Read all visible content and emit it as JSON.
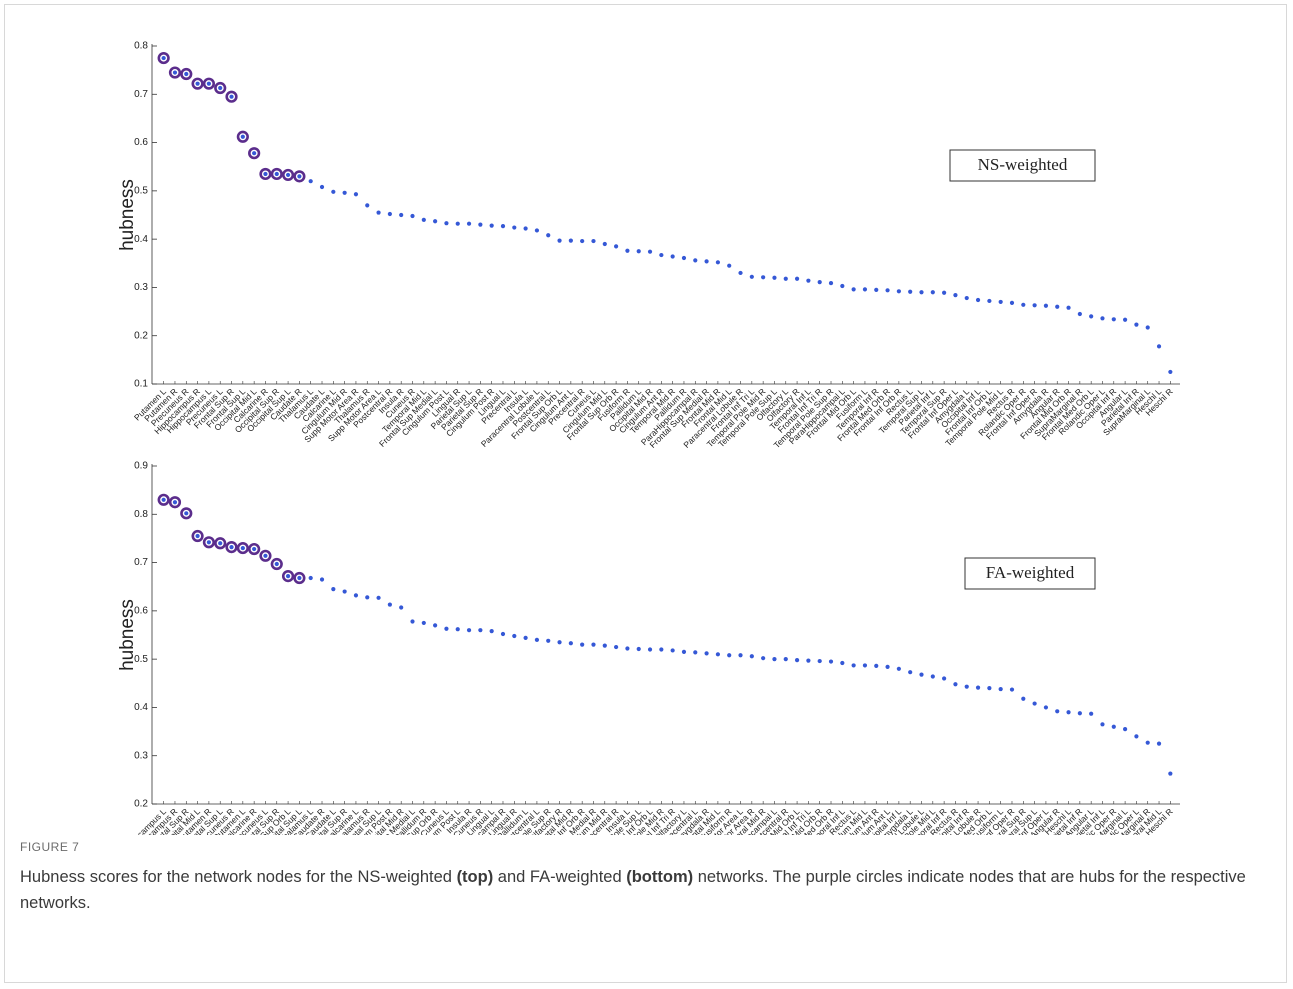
{
  "chart_data": [
    {
      "type": "scatter",
      "annotation": "NS-weighted",
      "y_label": "hubness",
      "color": "#3558d6",
      "highlight_color": "#5b2d8c",
      "highlight_count": 13,
      "ylim": [
        0.1,
        0.8
      ],
      "yticks": [
        0.1,
        0.2,
        0.3,
        0.4,
        0.5,
        0.6,
        0.7,
        0.8
      ],
      "categories": [
        "Putamen L",
        "Putamen R",
        "Precuneus R",
        "Hippocampus R",
        "Hippocampus L",
        "Precuneus L",
        "Frontal Sup R",
        "Frontal Sup L",
        "Occipital Mid L",
        "Calcarine R",
        "Occipital Sup R",
        "Occipital Sup L",
        "Caudate R",
        "Thalamus L",
        "Caudate L",
        "Calcarine L",
        "Cingulum Mid R",
        "Supp Motor Area R",
        "Thalamus R",
        "Supp Motor Area L",
        "Postcentral R",
        "Insula R",
        "Cuneus R",
        "Temporal Mid L",
        "Frontal Sup Medial L",
        "Cingulum Post L",
        "Lingual R",
        "Parietal Sup L",
        "Parietal Sup R",
        "Cingulum Post R",
        "Lingual L",
        "Precentral L",
        "Insula L",
        "Paracentral Lobule L",
        "Postcentral L",
        "Frontal Sup Orb L",
        "Cingulum Ant L",
        "Precentral R",
        "Cuneus L",
        "Cingulum Mid L",
        "Frontal Sup Orb R",
        "Fusiform R",
        "Pallidum L",
        "Occipital Mid R",
        "Cingulum Ant R",
        "Temporal Mid R",
        "Pallidum R",
        "ParaHippocampal R",
        "Frontal Sup Medial R",
        "Frontal Mid R",
        "Frontal Mid L",
        "Paracentral Lobule R",
        "Frontal Inf Tri L",
        "Temporal Pole Mid R",
        "Temporal Pole Sup L",
        "Olfactory L",
        "Olfactory R",
        "Temporal Inf L",
        "Frontal Inf Tri R",
        "Temporal Pole Sup R",
        "ParaHippocampal L",
        "Frontal Mid Orb L",
        "Fusiform L",
        "Temporal Inf R",
        "Frontal Med Orb R",
        "Frontal Inf Orb R",
        "Rectus L",
        "Temporal Sup L",
        "Parietal Inf L",
        "Temporal Sup R",
        "Frontal Inf Oper L",
        "Amygdala L",
        "Occipital Inf L",
        "Frontal Inf Orb L",
        "Temporal Pole Mid L",
        "Rectus R",
        "Rolandic Oper R",
        "Frontal Inf Oper R",
        "Amygdala R",
        "Angular R",
        "Frontal Mid Orb R",
        "SupraMarginal R",
        "Frontal Med Orb L",
        "Rolandic Oper L",
        "Occipital Inf R",
        "Angular L",
        "Parietal Inf R",
        "SupraMarginal L",
        "Heschl L",
        "Heschl R"
      ],
      "values": [
        0.775,
        0.745,
        0.742,
        0.722,
        0.722,
        0.713,
        0.695,
        0.612,
        0.578,
        0.535,
        0.535,
        0.533,
        0.53,
        0.52,
        0.508,
        0.498,
        0.496,
        0.493,
        0.47,
        0.455,
        0.452,
        0.45,
        0.448,
        0.44,
        0.437,
        0.433,
        0.432,
        0.432,
        0.43,
        0.428,
        0.427,
        0.424,
        0.422,
        0.418,
        0.408,
        0.397,
        0.397,
        0.396,
        0.396,
        0.39,
        0.385,
        0.376,
        0.375,
        0.374,
        0.367,
        0.364,
        0.361,
        0.356,
        0.354,
        0.352,
        0.345,
        0.33,
        0.322,
        0.321,
        0.32,
        0.318,
        0.318,
        0.314,
        0.311,
        0.309,
        0.303,
        0.296,
        0.296,
        0.295,
        0.294,
        0.292,
        0.291,
        0.29,
        0.29,
        0.289,
        0.284,
        0.278,
        0.274,
        0.272,
        0.27,
        0.268,
        0.264,
        0.263,
        0.262,
        0.26,
        0.258,
        0.245,
        0.24,
        0.236,
        0.234,
        0.233,
        0.223,
        0.217,
        0.178,
        0.125
      ]
    },
    {
      "type": "scatter",
      "annotation": "FA-weighted",
      "y_label": "hubness",
      "color": "#3558d6",
      "highlight_color": "#5b2d8c",
      "highlight_count": 13,
      "ylim": [
        0.2,
        0.9
      ],
      "yticks": [
        0.2,
        0.3,
        0.4,
        0.5,
        0.6,
        0.7,
        0.8,
        0.9
      ],
      "categories": [
        "Hippocampus L",
        "Hippocampus R",
        "Frontal Sup R",
        "Occipital Mid L",
        "Putamen R",
        "Frontal Sup L",
        "Precuneus R",
        "Putamen L",
        "Calcarine R",
        "Precuneus L",
        "Parietal Sup R",
        "Frontal Sup Orb L",
        "Occipital Sup L",
        "Thalamus L",
        "Caudate R",
        "Caudate L",
        "Occipital Sup R",
        "Calcarine L",
        "Thalamus R",
        "Parietal Sup L",
        "Cingulum Post R",
        "Occipital Mid R",
        "Frontal Sup Medial L",
        "Pallidum R",
        "Frontal Sup Orb R",
        "Cuneus L",
        "Cingulum Post L",
        "Insula R",
        "Cuneus R",
        "Lingual L",
        "ParaHippocampal R",
        "Lingual R",
        "Pallidum L",
        "Postcentral L",
        "Temporal Pole Sup R",
        "Olfactory R",
        "Frontal Mid R",
        "Frontal Inf Orb R",
        "Frontal Sup Medial R",
        "Cingulum Mid R",
        "Precentral R",
        "Insula L",
        "Temporal Pole Sup L",
        "Frontal Inf Orb L",
        "Temporal Pole Mid R",
        "Frontal Inf Tri R",
        "Olfactory L",
        "Precentral L",
        "Amygdala R",
        "Frontal Mid L",
        "Fusiform R",
        "Supp Motor Area L",
        "Supp Motor Area R",
        "Temporal Mid R",
        "ParaHippocampal L",
        "Postcentral R",
        "Frontal Mid Orb L",
        "Frontal Inf Tri L",
        "Frontal Mid Orb R",
        "Frontal Med Orb R",
        "Temporal Inf L",
        "Rectus L",
        "Cingulum Mid L",
        "Cingulum Ant R",
        "Cingulum Ant L",
        "Occipital Inf L",
        "Amygdala L",
        "Paracentral Lobule L",
        "Temporal Pole Mid L",
        "Temporal Inf R",
        "Rectus R",
        "Occipital Inf R",
        "Paracentral Lobule R",
        "Frontal Med Orb L",
        "Fusiform L",
        "Frontal Inf Oper R",
        "Temporal Sup R",
        "Temporal Sup L",
        "Frontal Inf Oper L",
        "Angular R",
        "Heschl L",
        "Parietal Inf R",
        "Angular L",
        "Parietal Inf L",
        "Rolandic Oper R",
        "SupraMarginal L",
        "Rolandic Oper L",
        "SupraMarginal R",
        "Temporal Mid L",
        "Heschl R"
      ],
      "values": [
        0.83,
        0.825,
        0.802,
        0.755,
        0.742,
        0.74,
        0.732,
        0.73,
        0.728,
        0.714,
        0.697,
        0.672,
        0.668,
        0.668,
        0.665,
        0.645,
        0.64,
        0.632,
        0.628,
        0.627,
        0.613,
        0.607,
        0.578,
        0.575,
        0.57,
        0.563,
        0.562,
        0.56,
        0.56,
        0.558,
        0.552,
        0.548,
        0.544,
        0.54,
        0.538,
        0.535,
        0.533,
        0.53,
        0.53,
        0.528,
        0.525,
        0.522,
        0.521,
        0.52,
        0.52,
        0.518,
        0.515,
        0.514,
        0.512,
        0.51,
        0.508,
        0.508,
        0.506,
        0.502,
        0.5,
        0.5,
        0.498,
        0.497,
        0.496,
        0.495,
        0.492,
        0.487,
        0.487,
        0.486,
        0.484,
        0.48,
        0.473,
        0.468,
        0.464,
        0.46,
        0.448,
        0.443,
        0.441,
        0.44,
        0.438,
        0.437,
        0.418,
        0.408,
        0.4,
        0.392,
        0.39,
        0.388,
        0.387,
        0.365,
        0.36,
        0.355,
        0.34,
        0.327,
        0.325,
        0.263
      ]
    }
  ],
  "figure": {
    "label": "FIGURE 7",
    "caption": [
      "Hubness scores for the network nodes for the NS-weighted ",
      "(top)",
      " and FA-weighted ",
      "(bottom)",
      " networks. The purple circles indicate nodes that are hubs for the respective networks."
    ]
  }
}
